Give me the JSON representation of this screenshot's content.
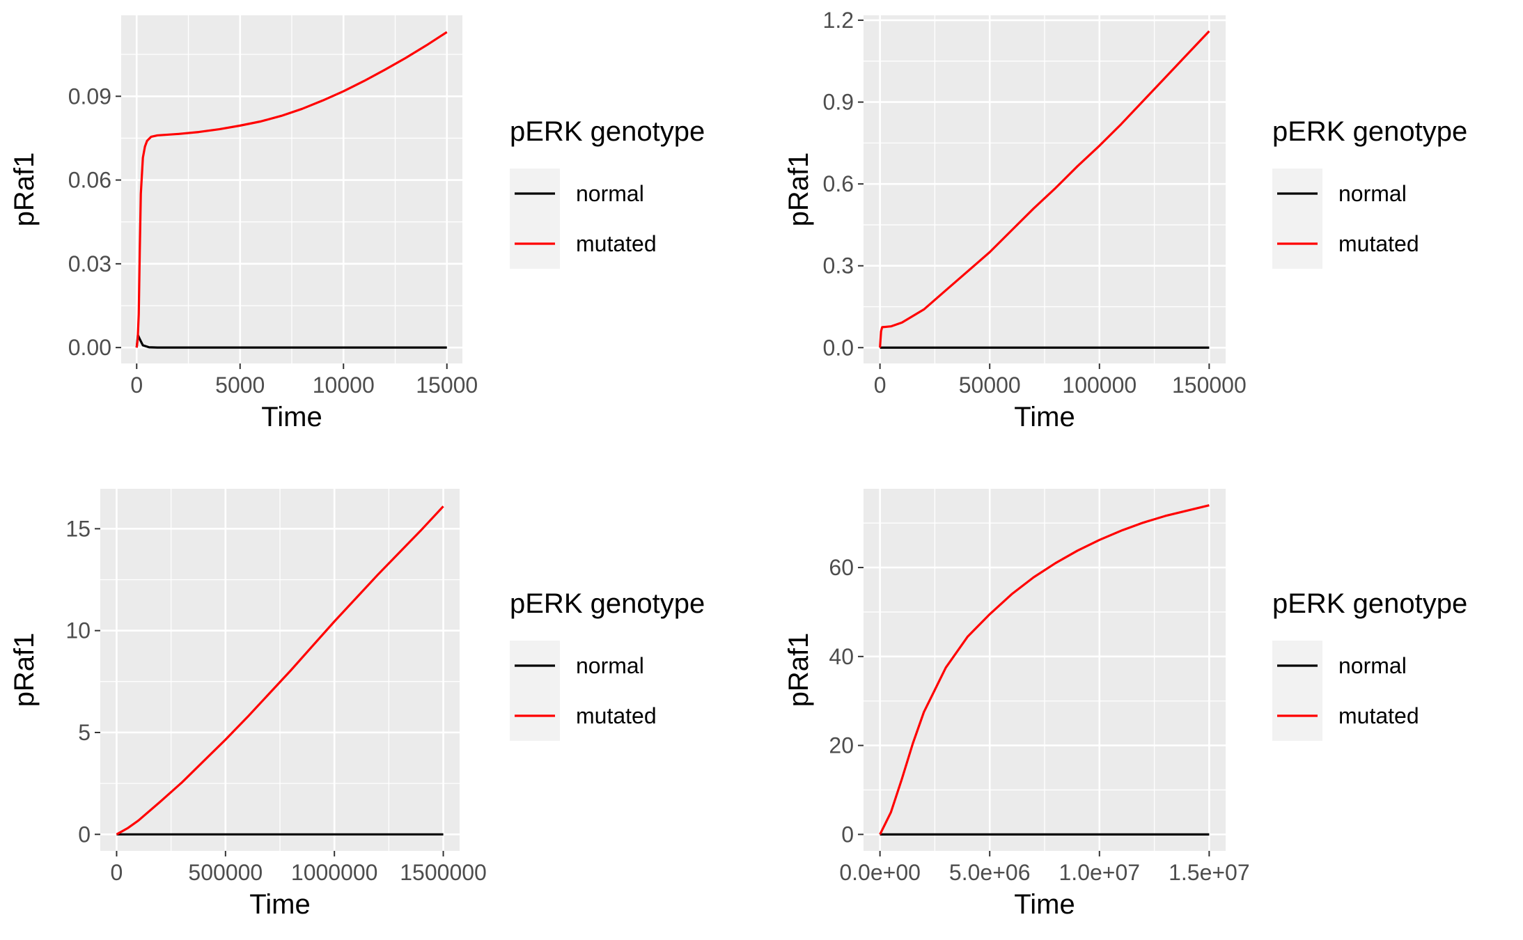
{
  "chart_data": [
    {
      "type": "line",
      "xlabel": "Time",
      "ylabel": "pRaf1",
      "xlim": [
        -750,
        15750
      ],
      "ylim": [
        -0.0057,
        0.119
      ],
      "x_ticks": [
        0,
        5000,
        10000,
        15000
      ],
      "x_tick_labels": [
        "0",
        "5000",
        "10000",
        "15000"
      ],
      "y_ticks": [
        0,
        0.03,
        0.06,
        0.09
      ],
      "y_tick_labels": [
        "0.00",
        "0.03",
        "0.06",
        "0.09"
      ],
      "grid": true,
      "legend": {
        "title": "pERK genotype",
        "position": "right"
      },
      "series": [
        {
          "name": "normal",
          "color": "#000000",
          "points": [
            [
              0,
              0
            ],
            [
              60,
              0.0045
            ],
            [
              150,
              0.003
            ],
            [
              300,
              0.0008
            ],
            [
              600,
              0.0001
            ],
            [
              1000,
              0
            ],
            [
              15000,
              0
            ]
          ]
        },
        {
          "name": "mutated",
          "color": "#ff0000",
          "points": [
            [
              0,
              0
            ],
            [
              50,
              0.003
            ],
            [
              100,
              0.012
            ],
            [
              150,
              0.035
            ],
            [
              200,
              0.055
            ],
            [
              300,
              0.068
            ],
            [
              400,
              0.072
            ],
            [
              500,
              0.074
            ],
            [
              700,
              0.0755
            ],
            [
              1000,
              0.076
            ],
            [
              2000,
              0.0765
            ],
            [
              3000,
              0.0772
            ],
            [
              4000,
              0.0782
            ],
            [
              5000,
              0.0795
            ],
            [
              6000,
              0.081
            ],
            [
              7000,
              0.083
            ],
            [
              8000,
              0.0855
            ],
            [
              9000,
              0.0885
            ],
            [
              10000,
              0.0918
            ],
            [
              11000,
              0.0955
            ],
            [
              12000,
              0.0995
            ],
            [
              13000,
              0.1037
            ],
            [
              14000,
              0.1082
            ],
            [
              15000,
              0.113
            ]
          ]
        }
      ]
    },
    {
      "type": "line",
      "xlabel": "Time",
      "ylabel": "pRaf1",
      "xlim": [
        -7500,
        157500
      ],
      "ylim": [
        -0.058,
        1.218
      ],
      "x_ticks": [
        0,
        50000,
        100000,
        150000
      ],
      "x_tick_labels": [
        "0",
        "50000",
        "100000",
        "150000"
      ],
      "y_ticks": [
        0,
        0.3,
        0.6,
        0.9,
        1.2
      ],
      "y_tick_labels": [
        "0.0",
        "0.3",
        "0.6",
        "0.9",
        "1.2"
      ],
      "grid": true,
      "legend": {
        "title": "pERK genotype",
        "position": "right"
      },
      "series": [
        {
          "name": "normal",
          "color": "#000000",
          "points": [
            [
              0,
              0
            ],
            [
              150000,
              0
            ]
          ]
        },
        {
          "name": "mutated",
          "color": "#ff0000",
          "points": [
            [
              0,
              0
            ],
            [
              500,
              0.06
            ],
            [
              1000,
              0.075
            ],
            [
              5000,
              0.078
            ],
            [
              10000,
              0.092
            ],
            [
              20000,
              0.14
            ],
            [
              30000,
              0.21
            ],
            [
              40000,
              0.28
            ],
            [
              50000,
              0.35
            ],
            [
              60000,
              0.43
            ],
            [
              70000,
              0.51
            ],
            [
              80000,
              0.585
            ],
            [
              90000,
              0.665
            ],
            [
              100000,
              0.74
            ],
            [
              110000,
              0.82
            ],
            [
              120000,
              0.905
            ],
            [
              130000,
              0.99
            ],
            [
              140000,
              1.075
            ],
            [
              150000,
              1.16
            ]
          ]
        }
      ]
    },
    {
      "type": "line",
      "xlabel": "Time",
      "ylabel": "pRaf1",
      "xlim": [
        -75000,
        1575000
      ],
      "ylim": [
        -0.81,
        16.96
      ],
      "x_ticks": [
        0,
        500000,
        1000000,
        1500000
      ],
      "x_tick_labels": [
        "0",
        "500000",
        "1000000",
        "1500000"
      ],
      "y_ticks": [
        0,
        5,
        10,
        15
      ],
      "y_tick_labels": [
        "0",
        "5",
        "10",
        "15"
      ],
      "grid": true,
      "legend": {
        "title": "pERK genotype",
        "position": "right"
      },
      "series": [
        {
          "name": "normal",
          "color": "#000000",
          "points": [
            [
              0,
              0
            ],
            [
              1500000,
              0
            ]
          ]
        },
        {
          "name": "mutated",
          "color": "#ff0000",
          "points": [
            [
              0,
              0
            ],
            [
              50000,
              0.3
            ],
            [
              100000,
              0.68
            ],
            [
              200000,
              1.6
            ],
            [
              300000,
              2.55
            ],
            [
              400000,
              3.6
            ],
            [
              500000,
              4.65
            ],
            [
              600000,
              5.75
            ],
            [
              700000,
              6.9
            ],
            [
              800000,
              8.05
            ],
            [
              900000,
              9.25
            ],
            [
              1000000,
              10.45
            ],
            [
              1100000,
              11.6
            ],
            [
              1200000,
              12.75
            ],
            [
              1300000,
              13.85
            ],
            [
              1400000,
              14.95
            ],
            [
              1500000,
              16.1
            ]
          ]
        }
      ]
    },
    {
      "type": "line",
      "xlabel": "Time",
      "ylabel": "pRaf1",
      "xlim": [
        -750000,
        15750000
      ],
      "ylim": [
        -3.7,
        77.7
      ],
      "x_ticks": [
        0,
        5000000,
        10000000,
        15000000
      ],
      "x_tick_labels": [
        "0.0e+00",
        "5.0e+06",
        "1.0e+07",
        "1.5e+07"
      ],
      "y_ticks": [
        0,
        20,
        40,
        60
      ],
      "y_tick_labels": [
        "0",
        "20",
        "40",
        "60"
      ],
      "grid": true,
      "legend": {
        "title": "pERK genotype",
        "position": "right"
      },
      "series": [
        {
          "name": "normal",
          "color": "#000000",
          "points": [
            [
              0,
              0
            ],
            [
              15000000,
              0
            ]
          ]
        },
        {
          "name": "mutated",
          "color": "#ff0000",
          "points": [
            [
              0,
              0
            ],
            [
              500000,
              5
            ],
            [
              1000000,
              12.5
            ],
            [
              1500000,
              20.5
            ],
            [
              2000000,
              27.5
            ],
            [
              3000000,
              37.5
            ],
            [
              4000000,
              44.5
            ],
            [
              5000000,
              49.5
            ],
            [
              6000000,
              54
            ],
            [
              7000000,
              57.8
            ],
            [
              8000000,
              61
            ],
            [
              9000000,
              63.8
            ],
            [
              10000000,
              66.2
            ],
            [
              11000000,
              68.3
            ],
            [
              12000000,
              70.1
            ],
            [
              13000000,
              71.6
            ],
            [
              14000000,
              72.8
            ],
            [
              15000000,
              74
            ]
          ]
        }
      ]
    }
  ]
}
